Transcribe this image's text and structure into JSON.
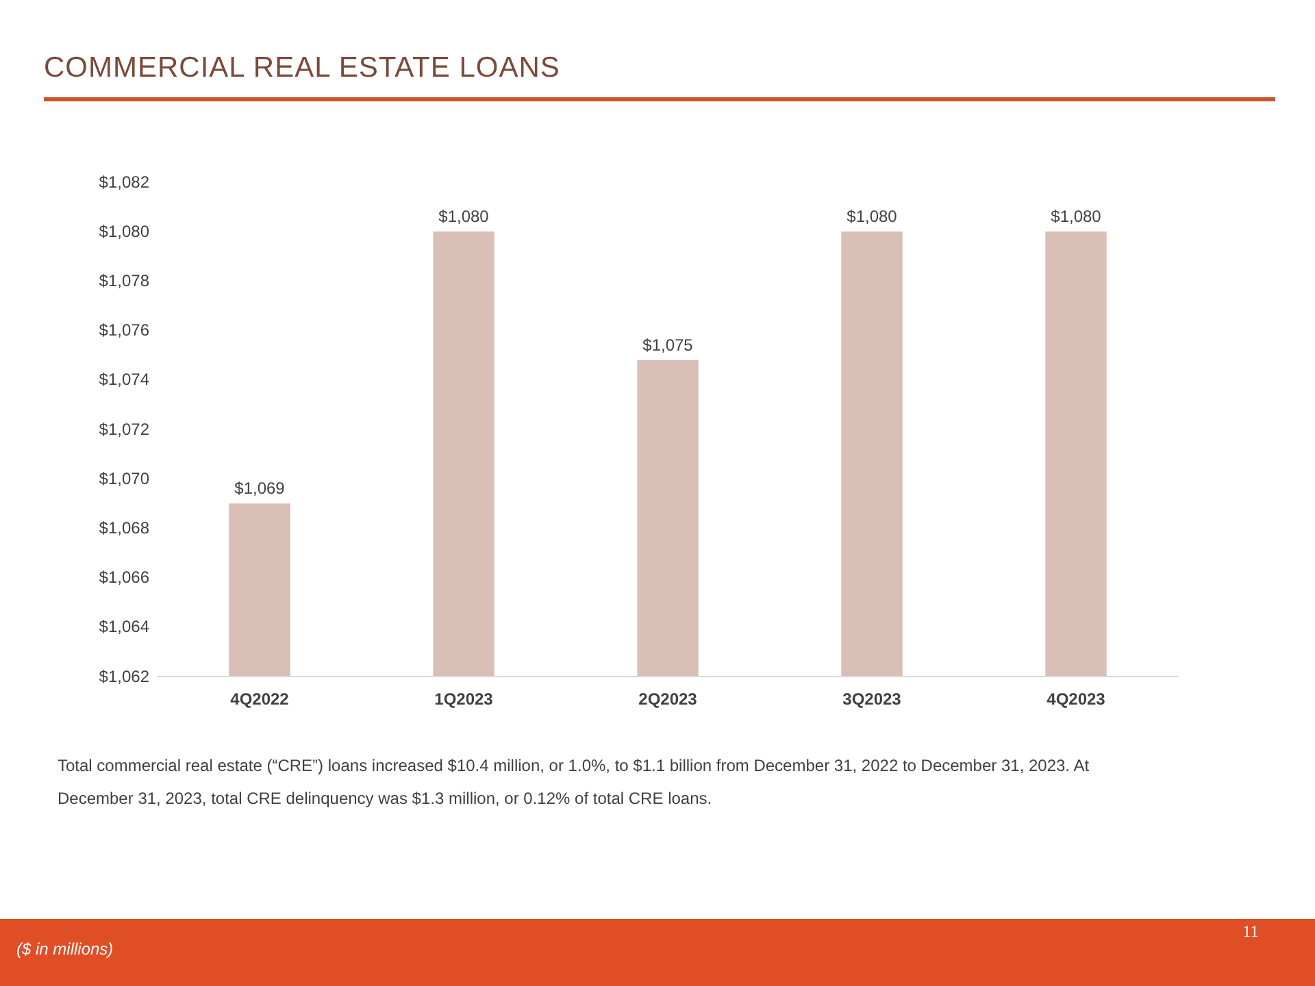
{
  "chart_data": {
    "type": "bar",
    "title": "COMMERCIAL REAL ESTATE LOANS",
    "categories": [
      "4Q2022",
      "1Q2023",
      "2Q2023",
      "3Q2023",
      "4Q2023"
    ],
    "values": [
      1069,
      1080,
      1074.8,
      1080,
      1080
    ],
    "value_labels": [
      "$1,069",
      "$1,080",
      "$1,075",
      "$1,080",
      "$1,080"
    ],
    "color": "#d9bfb5",
    "ylim": [
      1062,
      1082
    ],
    "yticks": [
      {
        "value": 1062,
        "label": "$1,062"
      },
      {
        "value": 1064,
        "label": "$1,064"
      },
      {
        "value": 1066,
        "label": "$1,066"
      },
      {
        "value": 1068,
        "label": "$1,068"
      },
      {
        "value": 1070,
        "label": "$1,070"
      },
      {
        "value": 1072,
        "label": "$1,072"
      },
      {
        "value": 1074,
        "label": "$1,074"
      },
      {
        "value": 1076,
        "label": "$1,076"
      },
      {
        "value": 1078,
        "label": "$1,078"
      },
      {
        "value": 1080,
        "label": "$1,080"
      },
      {
        "value": 1082,
        "label": "$1,082"
      }
    ],
    "grid": false,
    "annotations": [
      "Total commercial real estate (“CRE”) loans increased $10.4 million, or 1.0%, to $1.1 billion from December 31, 2022 to December 31, 2023. At December 31, 2023, total CRE delinquency was $1.3 million, or 0.12% of total CRE loans.",
      "($ in millions)",
      "11"
    ]
  }
}
